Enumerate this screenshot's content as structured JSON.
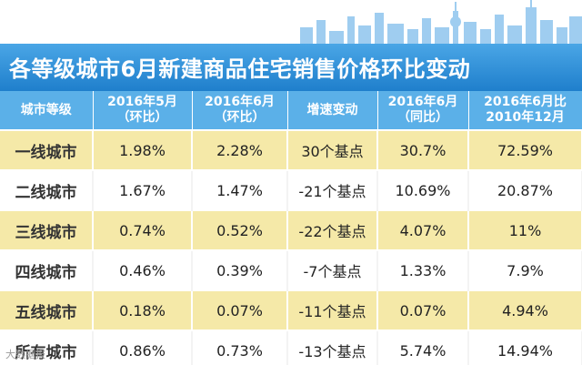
{
  "title": "各等级城市6月新建商品住宅销售价格环比变动",
  "chart_data": {
    "type": "table",
    "title": "各等级城市6月新建商品住宅销售价格环比变动",
    "columns": [
      "城市等级",
      "2016年5月\n（环比）",
      "2016年6月\n（环比）",
      "增速变动",
      "2016年6月\n（同比）",
      "2016年6月比\n2010年12月"
    ],
    "rows": [
      [
        "一线城市",
        "1.98%",
        "2.28%",
        "30个基点",
        "30.7%",
        "72.59%"
      ],
      [
        "二线城市",
        "1.67%",
        "1.47%",
        "-21个基点",
        "10.69%",
        "20.87%"
      ],
      [
        "三线城市",
        "0.74%",
        "0.52%",
        "-22个基点",
        "4.07%",
        "11%"
      ],
      [
        "四线城市",
        "0.46%",
        "0.39%",
        "-7个基点",
        "1.33%",
        "7.9%"
      ],
      [
        "五线城市",
        "0.18%",
        "0.07%",
        "-11个基点",
        "0.07%",
        "4.94%"
      ],
      [
        "所有城市",
        "0.86%",
        "0.73%",
        "-13个基点",
        "5.74%",
        "14.94%"
      ]
    ]
  },
  "watermark": "大数据报",
  "colors": {
    "header": "#5bb0e8",
    "title_bar": "#2b8fd8",
    "row_highlight": "#f5e9a8",
    "skyline": "#8fc4ec"
  }
}
